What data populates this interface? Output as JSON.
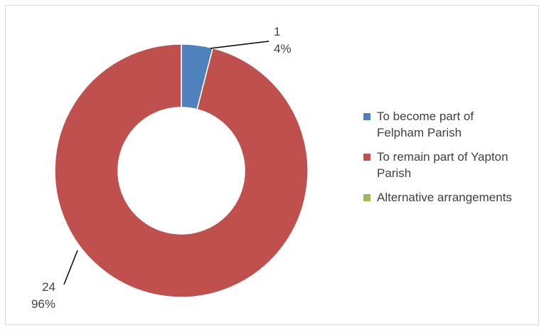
{
  "chart_data": {
    "type": "pie",
    "donut": true,
    "categories": [
      "To become part of Felpham Parish",
      "To remain part of Yapton Parish",
      "Alternative arrangements"
    ],
    "legend_lines": [
      [
        "To become part of",
        "Felpham Parish"
      ],
      [
        "To remain part of Yapton",
        "Parish"
      ],
      [
        "Alternative arrangements"
      ]
    ],
    "values": [
      1,
      24,
      0
    ],
    "percent_labels": [
      "4%",
      "96%",
      ""
    ],
    "value_labels": [
      "1",
      "24",
      ""
    ],
    "colors": [
      "#4f81bd",
      "#c0504d",
      "#9bbb59"
    ],
    "legend_position": "right",
    "title": ""
  }
}
